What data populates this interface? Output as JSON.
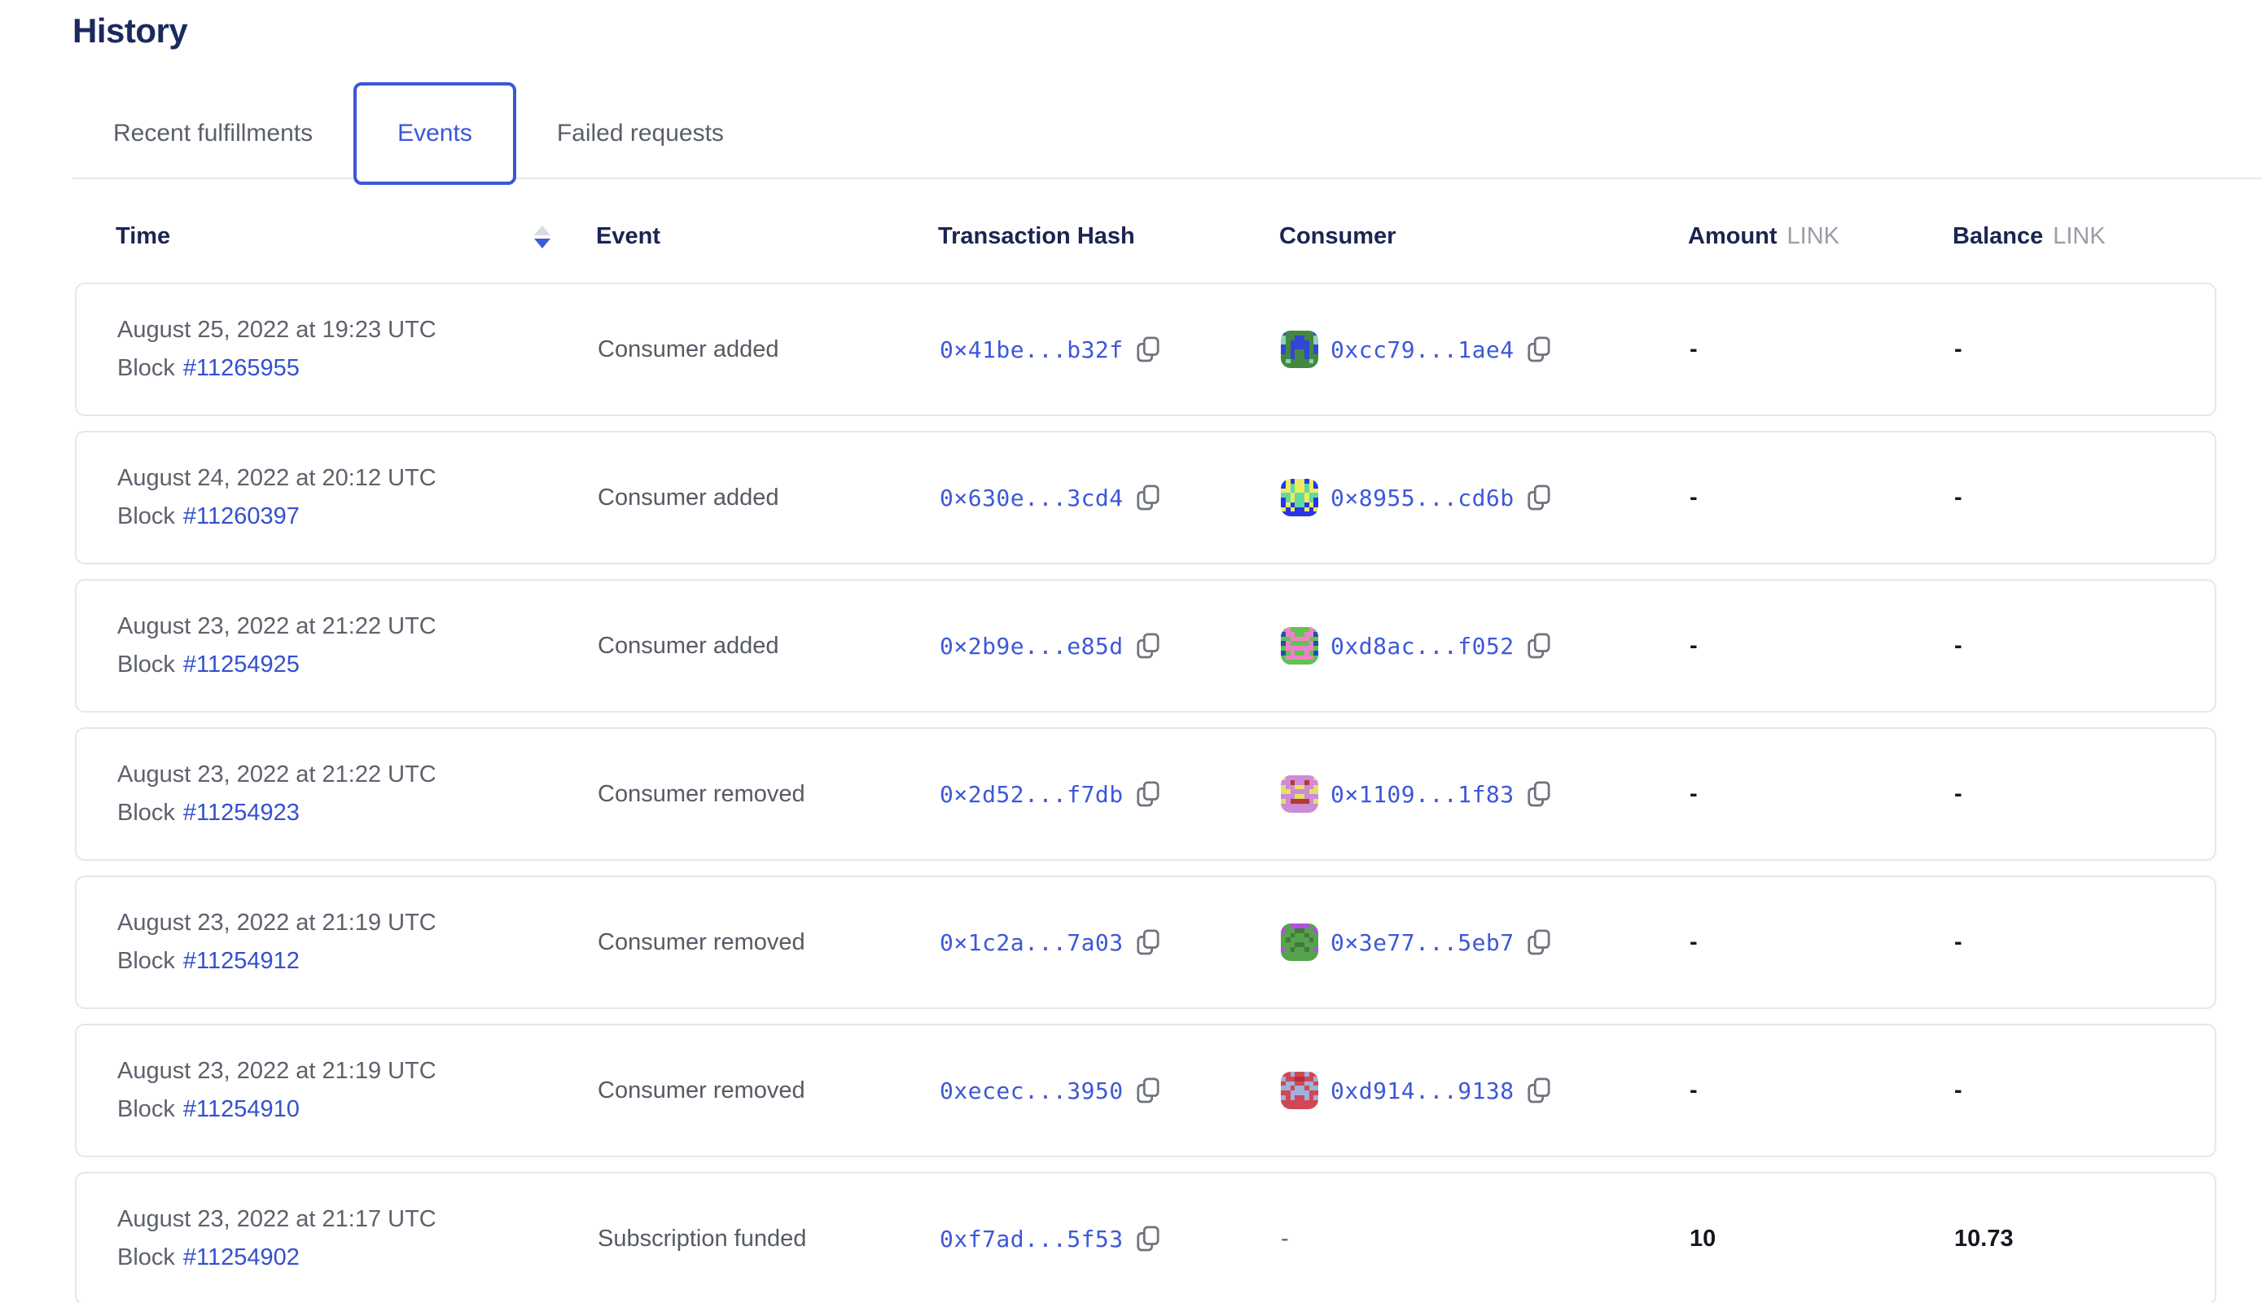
{
  "page": {
    "title": "History"
  },
  "tabs": [
    {
      "label": "Recent fulfillments",
      "active": false
    },
    {
      "label": "Events",
      "active": true
    },
    {
      "label": "Failed requests",
      "active": false
    }
  ],
  "table": {
    "headers": {
      "time": "Time",
      "event": "Event",
      "transaction_hash": "Transaction Hash",
      "consumer": "Consumer",
      "amount": "Amount",
      "balance": "Balance",
      "unit": "LINK"
    },
    "sort": {
      "column": "time",
      "direction": "desc"
    },
    "rows": [
      {
        "date": "August 25, 2022 at 19:23 UTC",
        "block_label": "Block",
        "block": "#11265955",
        "event": "Consumer added",
        "tx_hash": "0×41be...b32f",
        "consumer": "0xcc79...1ae4",
        "consumer_icon": {
          "palette": [
            "#44883f",
            "#3347d6",
            "#8fd2b9"
          ],
          "pattern": [
            "10000001",
            "20011002",
            "20111102",
            "10111101",
            "10100101",
            "00100100",
            "02000020",
            "00000000"
          ]
        },
        "amount": "-",
        "balance": "-"
      },
      {
        "date": "August 24, 2022 at 20:12 UTC",
        "block_label": "Block",
        "block": "#11260397",
        "event": "Consumer added",
        "tx_hash": "0×630e...3cd4",
        "consumer": "0×8955...cd6b",
        "consumer_icon": {
          "palette": [
            "#2636e8",
            "#ecec62",
            "#62d89e"
          ],
          "pattern": [
            "01011010",
            "01211210",
            "11211211",
            "22122122",
            "02122120",
            "01022010",
            "10100101",
            "00000000"
          ]
        },
        "amount": "-",
        "balance": "-"
      },
      {
        "date": "August 23, 2022 at 21:22 UTC",
        "block_label": "Block",
        "block": "#11254925",
        "event": "Consumer added",
        "tx_hash": "0×2b9e...e85d",
        "consumer": "0xd8ac...f052",
        "consumer_icon": {
          "palette": [
            "#5ec44e",
            "#ec83c6",
            "#2b49b8"
          ],
          "pattern": [
            "01000010",
            "21100112",
            "00111100",
            "21000012",
            "01111110",
            "20100102",
            "01111110",
            "00000000"
          ]
        },
        "amount": "-",
        "balance": "-"
      },
      {
        "date": "August 23, 2022 at 21:22 UTC",
        "block_label": "Block",
        "block": "#11254923",
        "event": "Consumer removed",
        "tx_hash": "0×2d52...f7db",
        "consumer": "0×1109...1f83",
        "consumer_icon": {
          "palette": [
            "#cd8bd8",
            "#e6e066",
            "#b23a30"
          ],
          "pattern": [
            "10000001",
            "00200200",
            "10011001",
            "11000011",
            "00011000",
            "10222201",
            "00000000",
            "00000000"
          ]
        },
        "amount": "-",
        "balance": "-"
      },
      {
        "date": "August 23, 2022 at 21:19 UTC",
        "block_label": "Block",
        "block": "#11254912",
        "event": "Consumer removed",
        "tx_hash": "0×1c2a...7a03",
        "consumer": "0×3e77...5eb7",
        "consumer_icon": {
          "palette": [
            "#57a24f",
            "#b44fe0",
            "#3f7c3a"
          ],
          "pattern": [
            "00111100",
            "10022001",
            "00200200",
            "02000020",
            "00022000",
            "10200201",
            "00000000",
            "00000000"
          ]
        },
        "amount": "-",
        "balance": "-"
      },
      {
        "date": "August 23, 2022 at 21:19 UTC",
        "block_label": "Block",
        "block": "#11254910",
        "event": "Consumer removed",
        "tx_hash": "0xecec...3950",
        "consumer": "0xd914...9138",
        "consumer_icon": {
          "palette": [
            "#cf4853",
            "#a0b2dc",
            "#b42d3c"
          ],
          "pattern": [
            "00100100",
            "10022001",
            "01100110",
            "11011011",
            "00111100",
            "10100101",
            "00000000",
            "00000000"
          ]
        },
        "amount": "-",
        "balance": "-"
      },
      {
        "date": "August 23, 2022 at 21:17 UTC",
        "block_label": "Block",
        "block": "#11254902",
        "event": "Subscription funded",
        "tx_hash": "0xf7ad...5f53",
        "consumer": null,
        "consumer_dash": "-",
        "consumer_icon": null,
        "amount": "10",
        "balance": "10.73"
      }
    ]
  },
  "colors": {
    "accent_blue": "#3b57d9",
    "link_blue": "#3450cf",
    "hash_blue": "#3d58d8",
    "title_navy": "#1b2a5e",
    "header_navy": "#1b2452",
    "muted_gray": "#5d616c",
    "border_gray": "#e5e7ec"
  },
  "icons": {
    "copy": "copy-icon",
    "sort_asc": "sort-asc-icon",
    "sort_desc": "sort-desc-icon"
  }
}
